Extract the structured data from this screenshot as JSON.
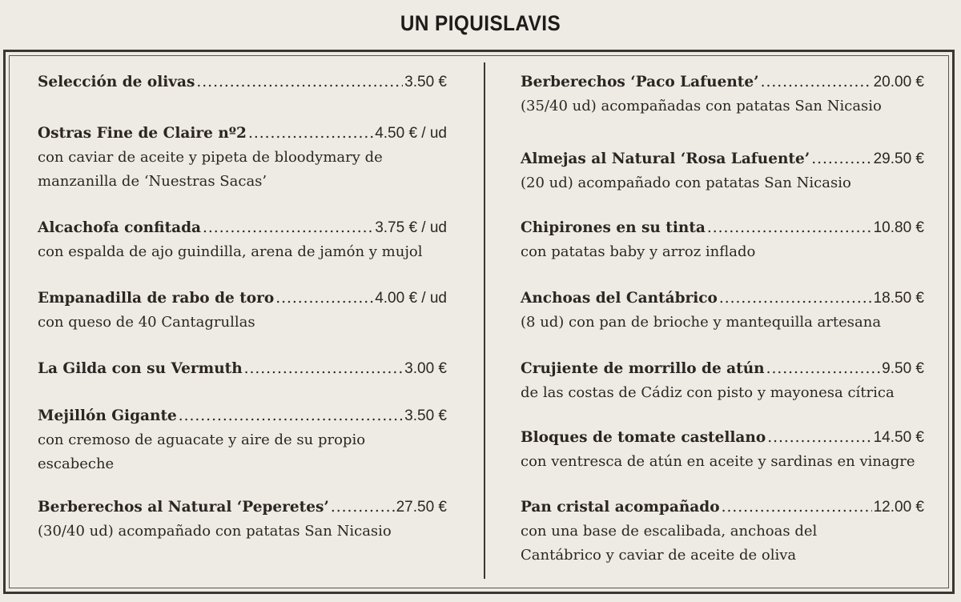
{
  "title": "UN PIQUISLAVIS",
  "left": [
    {
      "name": "Selección de olivas",
      "price": "3.50 €",
      "desc": ""
    },
    {
      "name": "Ostras Fine de Claire nº2",
      "price": "4.50 € / ud",
      "desc": "con caviar de aceite y pipeta de bloodymary de\nmanzanilla de ‘Nuestras Sacas’"
    },
    {
      "name": "Alcachofa confitada",
      "price": "3.75 € / ud",
      "desc": "con espalda de ajo guindilla, arena de jamón y mujol"
    },
    {
      "name": "Empanadilla de rabo de toro",
      "price": "4.00 € / ud",
      "desc": "con queso de 40 Cantagrullas"
    },
    {
      "name": "La Gilda con su Vermuth",
      "price": "3.00 €",
      "desc": ""
    },
    {
      "name": "Mejillón Gigante",
      "price": "3.50 €",
      "desc": "con cremoso de aguacate y aire de su propio\nescabeche"
    },
    {
      "name": "Berberechos al Natural ‘Peperetes’",
      "price": "27.50 €",
      "desc": "(30/40 ud) acompañado con patatas San Nicasio"
    }
  ],
  "right": [
    {
      "name": "Berberechos ‘Paco Lafuente’",
      "price": "20.00 €",
      "desc": "(35/40 ud) acompañadas con patatas San Nicasio"
    },
    {
      "name": "Almejas al Natural ‘Rosa Lafuente’",
      "price": "29.50 €",
      "desc": "(20 ud) acompañado con patatas San Nicasio"
    },
    {
      "name": "Chipirones en su tinta",
      "price": "10.80 €",
      "desc": "con patatas baby y arroz inflado"
    },
    {
      "name": "Anchoas del Cantábrico",
      "price": "18.50 €",
      "desc": "(8 ud) con pan de brioche y mantequilla artesana"
    },
    {
      "name": "Crujiente de morrillo de atún",
      "price": "9.50 €",
      "desc": "de las costas de Cádiz con pisto y mayonesa cítrica"
    },
    {
      "name": "Bloques de tomate castellano",
      "price": "14.50 €",
      "desc": "con ventresca de atún en aceite y sardinas en vinagre"
    },
    {
      "name": "Pan cristal acompañado",
      "price": "12.00 €",
      "desc": "con una base de escalibada, anchoas del\nCantábrico y caviar de aceite de oliva"
    }
  ]
}
